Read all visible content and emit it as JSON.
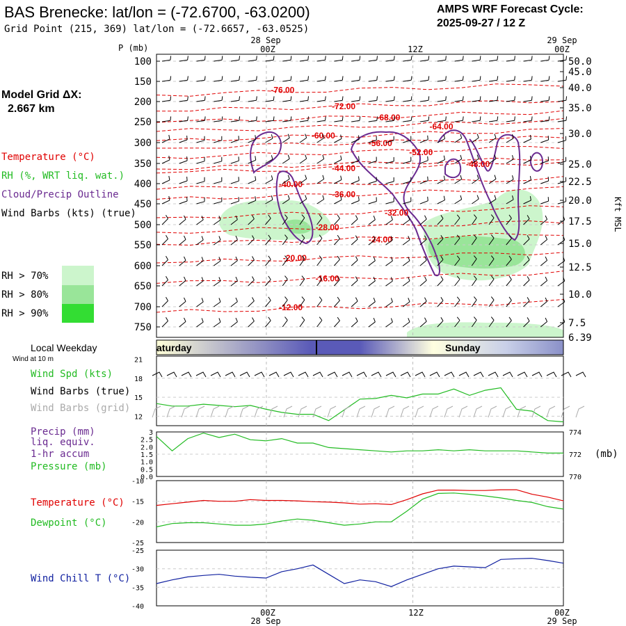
{
  "header": {
    "station_title": "BAS Brenecke:  lat/lon = (-72.6700, -63.0200)",
    "grid_point": "Grid Point (215, 369) lat/lon = (-72.6657, -63.0525)",
    "cycle_label": "AMPS WRF Forecast Cycle:",
    "cycle_value": "2025-09-27 / 12  Z"
  },
  "left_panel": {
    "model_grid_label": "Model Grid ΔX:",
    "model_grid_value": "2.667 km",
    "legend_temperature": "Temperature (°C)",
    "legend_rh": "RH (%, WRT liq. wat.)",
    "legend_cloud": "Cloud/Precip Outline",
    "legend_wind": "Wind Barbs (kts) (true)",
    "rh_levels": [
      "RH > 70%",
      "RH > 80%",
      "RH > 90%"
    ],
    "local_weekday": "Local Weekday",
    "wind_at_10m": "Wind at 10 m"
  },
  "colors": {
    "temperature": "#e00000",
    "rh": "#22bb22",
    "cloud": "#6a2a90",
    "wind_chill": "#1020a0",
    "rh70": "#ccf5cc",
    "rh80": "#99e599",
    "rh90": "#33dd33",
    "grid_barb": "#aaaaaa"
  },
  "chart_data": [
    {
      "type": "line",
      "name": "upper-air-cross-section",
      "ylabel": "P (mb)",
      "right_label": "Kft MSL",
      "top_date_labels": [
        "28 Sep",
        "29 Sep"
      ],
      "top_time_labels": [
        "00Z",
        "12Z",
        "00Z"
      ],
      "pressure_ticks": [
        100,
        150,
        200,
        250,
        300,
        350,
        400,
        450,
        500,
        550,
        600,
        650,
        700,
        750
      ],
      "height_ticks": [
        "50.0",
        "45.0",
        "40.0",
        "35.0",
        "30.0",
        "25.0",
        "22.5",
        "20.0",
        "17.5",
        "15.0",
        "12.5",
        "10.0",
        "7.5",
        "6.39"
      ],
      "temperature_contours": [
        {
          "label": "-76.00",
          "t": 0.31,
          "p": 170
        },
        {
          "label": "-72.00",
          "t": 0.46,
          "p": 210
        },
        {
          "label": "-68.00",
          "t": 0.57,
          "p": 238
        },
        {
          "label": "-64.00",
          "t": 0.7,
          "p": 260
        },
        {
          "label": "-60.00",
          "t": 0.41,
          "p": 282
        },
        {
          "label": "-56.00",
          "t": 0.55,
          "p": 300
        },
        {
          "label": "-52.00",
          "t": 0.65,
          "p": 322
        },
        {
          "label": "-48.00",
          "t": 0.79,
          "p": 350
        },
        {
          "label": "-44.00",
          "t": 0.46,
          "p": 360
        },
        {
          "label": "-40.00",
          "t": 0.33,
          "p": 400
        },
        {
          "label": "-36.00",
          "t": 0.46,
          "p": 425
        },
        {
          "label": "-32.00",
          "t": 0.59,
          "p": 470
        },
        {
          "label": "-28.00",
          "t": 0.42,
          "p": 505
        },
        {
          "label": "-24.00",
          "t": 0.55,
          "p": 535
        },
        {
          "label": "-20.00",
          "t": 0.34,
          "p": 580
        },
        {
          "label": "-16.00",
          "t": 0.42,
          "p": 630
        },
        {
          "label": "-12.00",
          "t": 0.33,
          "p": 700
        }
      ]
    },
    {
      "type": "line",
      "name": "wind-speed",
      "series_label": "Wind Spd (kts)",
      "barb_true_label": "Wind Barbs (true)",
      "barb_grid_label": "Wind Barbs (grid)",
      "yticks": [
        12,
        15,
        18,
        21
      ],
      "ylim": [
        10.5,
        21.5
      ],
      "values": [
        14,
        13.6,
        13.6,
        13.9,
        13.7,
        13.5,
        13.7,
        13.1,
        12.6,
        12.3,
        12.3,
        11.3,
        13,
        14.7,
        14.8,
        15.3,
        14.9,
        15.5,
        15.5,
        16.3,
        15.3,
        16.1,
        16.5,
        13.1,
        12.8,
        11.3,
        11.1
      ]
    },
    {
      "type": "line",
      "name": "precip-pressure",
      "precip_label": "Precip (mm)",
      "precip_sub1": "liq. equiv.",
      "precip_sub2": "1-hr accum",
      "pressure_label": "Pressure (mb)",
      "pressure_unit": "(mb)",
      "left_ticks": [
        "0.0",
        "0.5",
        "1.0",
        "1.5",
        "2.0",
        "2.5",
        "3"
      ],
      "right_ticks": [
        "770",
        "772",
        "774"
      ],
      "pressure_ylim": [
        770,
        774
      ],
      "pressure_values": [
        773.6,
        772.3,
        773.4,
        773.9,
        773.5,
        773.8,
        773.3,
        773.2,
        773.4,
        773.0,
        773.0,
        772.6,
        772.5,
        772.4,
        772.3,
        772.2,
        772.3,
        772.3,
        772.4,
        772.3,
        772.4,
        772.3,
        772.3,
        772.3,
        772.2,
        772.1,
        772.1
      ],
      "precip_values": [
        0,
        0,
        0,
        0,
        0,
        0,
        0,
        0,
        0,
        0,
        0,
        0,
        0,
        0,
        0,
        0,
        0,
        0,
        0,
        0,
        0,
        0,
        0,
        0,
        0,
        0,
        0
      ]
    },
    {
      "type": "line",
      "name": "temperature-dewpoint",
      "temp_label": "Temperature (°C)",
      "dew_label": "Dewpoint (°C)",
      "yticks": [
        -25,
        -20,
        -15,
        -10
      ],
      "ylim": [
        -25,
        -10
      ],
      "temperature": [
        -16,
        -15.6,
        -15.2,
        -14.8,
        -15,
        -15,
        -14.6,
        -14.8,
        -14.8,
        -14.9,
        -15.1,
        -15.2,
        -15.4,
        -15.7,
        -15.6,
        -15.8,
        -14.6,
        -13.2,
        -12.3,
        -12.3,
        -12.4,
        -12.4,
        -12.2,
        -12.2,
        -13.3,
        -14.0,
        -14.9
      ],
      "dewpoint": [
        -21.2,
        -20.4,
        -20.2,
        -20.2,
        -20.5,
        -20.8,
        -20.8,
        -20.5,
        -19.8,
        -19.3,
        -19.6,
        -20.2,
        -20.8,
        -20.5,
        -20.0,
        -20.0,
        -17.4,
        -14.5,
        -13.1,
        -13.0,
        -13.3,
        -13.7,
        -14.2,
        -14.8,
        -15.3,
        -16.3,
        -16.9
      ]
    },
    {
      "type": "line",
      "name": "wind-chill",
      "series_label": "Wind Chill T (°C)",
      "yticks": [
        -40,
        -35,
        -30,
        -25
      ],
      "ylim": [
        -40,
        -25
      ],
      "values": [
        -34,
        -33,
        -32.2,
        -31.8,
        -31.5,
        -32,
        -32.3,
        -32.5,
        -30.8,
        -30,
        -29,
        -31.5,
        -34,
        -33,
        -33.5,
        -34.8,
        -33,
        -31.5,
        -30,
        -29.3,
        -29.5,
        -29.7,
        -27.5,
        -27.3,
        -27.2,
        -27.8,
        -28.5
      ]
    }
  ],
  "weekday_bar": {
    "left": "aturday",
    "right": "Sunday"
  },
  "bottom_axis": {
    "times": [
      "00Z",
      "12Z",
      "00Z"
    ],
    "dates": [
      "28 Sep",
      "29 Sep"
    ]
  }
}
